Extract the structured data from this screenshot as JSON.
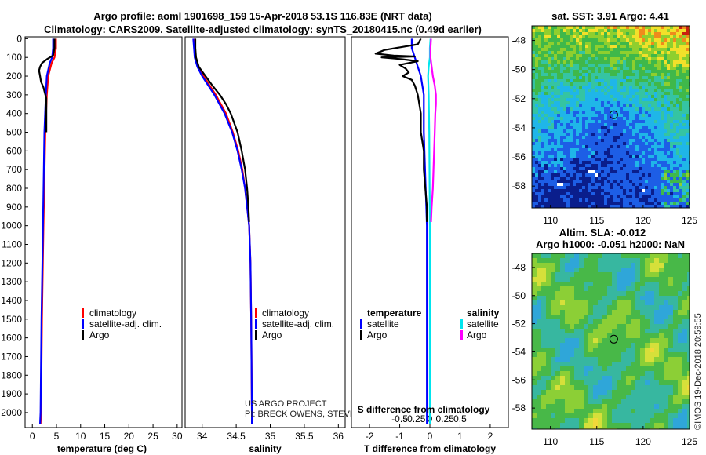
{
  "header": {
    "title_line1": "Argo profile: aoml 1901698_159 15-Apr-2018 53.1S 116.83E (NRT data)",
    "title_line2": "Climatology: CARS2009. Satellite-adjusted climatology: synTS_20180415.nc (0.49d earlier)"
  },
  "colors": {
    "climatology": "#ff0000",
    "satellite": "#0000ff",
    "argo": "#000000",
    "salinity_satellite": "#00e5ee",
    "salinity_argo": "#ff00ff"
  },
  "chart_data": [
    {
      "type": "line",
      "name": "temperature-profile",
      "xlabel": "temperature (deg C)",
      "ylabel": "depth",
      "xlim": [
        -1.5,
        31
      ],
      "ylim": [
        2080,
        -10
      ],
      "xticks": [
        "0",
        "5",
        "10",
        "15",
        "20",
        "25",
        "30"
      ],
      "yticks": [
        "0",
        "100",
        "200",
        "300",
        "400",
        "500",
        "600",
        "700",
        "800",
        "900",
        "1000",
        "1100",
        "1200",
        "1300",
        "1400",
        "1500",
        "1600",
        "1700",
        "1800",
        "1900",
        "2000"
      ],
      "legend": [
        "climatology",
        "satellite-adj. clim.",
        "Argo"
      ],
      "series": [
        {
          "name": "climatology",
          "depth": [
            0,
            50,
            100,
            130,
            200,
            300,
            500,
            1000,
            1500,
            2000,
            2060
          ],
          "values": [
            4.9,
            4.9,
            4.6,
            4.0,
            3.3,
            3.0,
            2.7,
            2.3,
            2.0,
            1.8,
            1.7
          ]
        },
        {
          "name": "satellite-adj. clim.",
          "depth": [
            0,
            50,
            100,
            130,
            200,
            300,
            500,
            1000,
            1500,
            2000,
            2060
          ],
          "values": [
            4.3,
            4.3,
            4.1,
            3.6,
            3.0,
            2.8,
            2.5,
            2.2,
            1.9,
            1.7,
            1.6
          ]
        },
        {
          "name": "Argo",
          "depth": [
            0,
            50,
            90,
            110,
            130,
            150,
            170,
            200,
            230,
            260,
            290,
            320,
            500
          ],
          "values": [
            4.6,
            4.6,
            4.3,
            3.0,
            2.0,
            1.6,
            1.4,
            1.6,
            1.8,
            2.3,
            2.6,
            2.9,
            2.9
          ]
        }
      ]
    },
    {
      "type": "line",
      "name": "salinity-profile",
      "xlabel": "salinity",
      "xlim": [
        33.75,
        36.1
      ],
      "ylim": [
        2080,
        -10
      ],
      "xticks": [
        "34",
        "34.5",
        "35",
        "35.5",
        "36"
      ],
      "legend": [
        "climatology",
        "satellite-adj. clim.",
        "Argo"
      ],
      "credits": [
        "US ARGO PROJECT",
        "PI: BRECK OWENS, STEVE JAYNE, AND P.E. ROBBINS"
      ],
      "series": [
        {
          "name": "climatology",
          "depth": [
            0,
            50,
            100,
            150,
            200,
            300,
            400,
            500,
            600,
            700,
            800,
            900,
            1000,
            1200,
            1500,
            2000,
            2060
          ],
          "values": [
            33.88,
            33.89,
            33.9,
            33.95,
            34.02,
            34.2,
            34.35,
            34.45,
            34.53,
            34.59,
            34.63,
            34.66,
            34.69,
            34.71,
            34.72,
            34.73,
            34.73
          ]
        },
        {
          "name": "satellite-adj. clim.",
          "depth": [
            0,
            50,
            100,
            150,
            200,
            300,
            400,
            500,
            600,
            700,
            800,
            900,
            1000,
            1200,
            1500,
            2000,
            2060
          ],
          "values": [
            33.87,
            33.88,
            33.89,
            33.93,
            34.0,
            34.18,
            34.33,
            34.44,
            34.52,
            34.58,
            34.63,
            34.66,
            34.69,
            34.71,
            34.72,
            34.73,
            34.73
          ]
        },
        {
          "name": "Argo",
          "depth": [
            0,
            50,
            100,
            150,
            200,
            250,
            300,
            350,
            400,
            500,
            600,
            700,
            800,
            900,
            980
          ],
          "values": [
            33.9,
            33.9,
            33.91,
            33.95,
            34.05,
            34.15,
            34.26,
            34.35,
            34.42,
            34.52,
            34.58,
            34.63,
            34.66,
            34.68,
            34.69
          ]
        }
      ]
    },
    {
      "type": "line",
      "name": "difference-profile",
      "xlabel": "T difference from climatology",
      "x2label": "S difference from climatology",
      "xlim": [
        -2.6,
        2.6
      ],
      "ylim": [
        2080,
        -10
      ],
      "xticks": [
        "-2",
        "-1",
        "0",
        "1",
        "2"
      ],
      "x2ticks": [
        "-0.5",
        "-0.25",
        "0",
        "0.25",
        "0.5"
      ],
      "legend_temperature_title": "temperature",
      "legend_salinity_title": "salinity",
      "legend_entries": [
        "satellite",
        "Argo"
      ],
      "series": [
        {
          "name": "temperature satellite",
          "depth": [
            0,
            50,
            100,
            150,
            200,
            300,
            500,
            1000,
            1500,
            2000,
            2060
          ],
          "values": [
            -0.6,
            -0.6,
            -0.5,
            -0.4,
            -0.3,
            -0.2,
            -0.2,
            -0.1,
            -0.1,
            -0.1,
            -0.1
          ]
        },
        {
          "name": "temperature Argo",
          "depth": [
            0,
            30,
            60,
            80,
            90,
            95,
            100,
            110,
            120,
            140,
            160,
            180,
            200,
            220,
            250,
            300,
            400,
            500,
            600,
            700,
            800,
            900,
            980
          ],
          "values": [
            -0.3,
            -0.4,
            -1.5,
            -1.8,
            -1.2,
            -0.5,
            -1.6,
            -0.9,
            -0.4,
            -1.0,
            -0.8,
            -0.7,
            -0.9,
            -0.6,
            -0.5,
            -0.4,
            -0.3,
            -0.3,
            -0.2,
            -0.2,
            -0.15,
            -0.1,
            -0.1
          ]
        },
        {
          "name": "salinity satellite",
          "depth": [
            0,
            50,
            100,
            150,
            200,
            300,
            500,
            1000,
            1500,
            2000,
            2060
          ],
          "values": [
            0.01,
            0.0,
            0.0,
            -0.02,
            -0.03,
            -0.02,
            -0.01,
            0.0,
            0.0,
            0.0,
            0.0
          ]
        },
        {
          "name": "salinity Argo",
          "depth": [
            0,
            50,
            100,
            150,
            200,
            250,
            300,
            350,
            400,
            500,
            600,
            700,
            800,
            900,
            980
          ],
          "values": [
            0.02,
            0.01,
            0.01,
            0.03,
            0.05,
            0.08,
            0.1,
            0.1,
            0.09,
            0.08,
            0.07,
            0.06,
            0.05,
            0.03,
            0.02
          ]
        }
      ]
    },
    {
      "type": "heatmap",
      "name": "sst-map",
      "title": "sat. SST: 3.91 Argo: 4.41",
      "xlim": [
        108,
        125
      ],
      "ylim": [
        -59.5,
        -47
      ],
      "xticks": [
        "110",
        "115",
        "120",
        "125"
      ],
      "yticks": [
        "-48",
        "-50",
        "-52",
        "-54",
        "-56",
        "-58"
      ],
      "marker": {
        "lon": 116.83,
        "lat": -53.1
      }
    },
    {
      "type": "heatmap",
      "name": "sla-map",
      "title_line1": "Altim. SLA: -0.012",
      "title_line2": "Argo h1000: -0.051 h2000: NaN",
      "xlim": [
        108,
        125
      ],
      "ylim": [
        -59.5,
        -47
      ],
      "xticks": [
        "110",
        "115",
        "120",
        "125"
      ],
      "yticks": [
        "-48",
        "-50",
        "-52",
        "-54",
        "-56",
        "-58"
      ],
      "marker": {
        "lon": 116.83,
        "lat": -53.1
      }
    }
  ],
  "footer": {
    "watermark": "©IMOS 19-Dec-2018 20:59:55"
  }
}
